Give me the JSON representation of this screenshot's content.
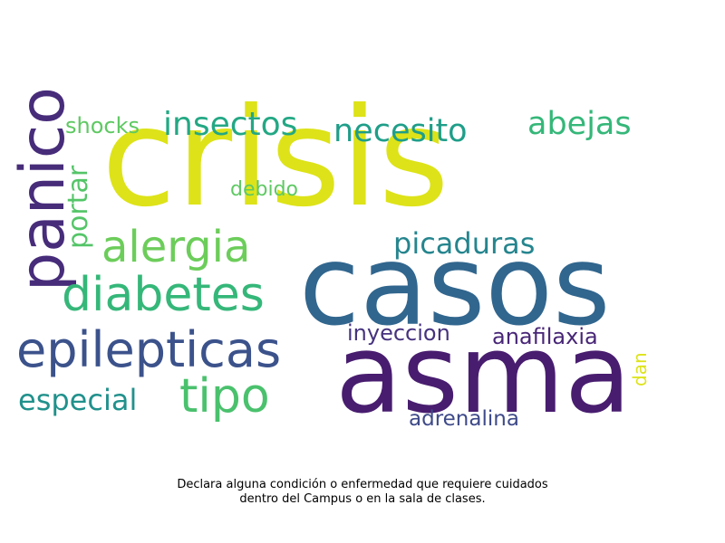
{
  "caption": {
    "line1": "Declara alguna condición o enfermedad que requiere cuidados",
    "line2": "dentro del Campus o en la sala de clases."
  },
  "words": [
    {
      "text": "crisis",
      "color": "#dde318"
    },
    {
      "text": "casos",
      "color": "#31668e"
    },
    {
      "text": "asma",
      "color": "#481d6f"
    },
    {
      "text": "panico",
      "color": "#472c7a"
    },
    {
      "text": "diabetes",
      "color": "#35b779"
    },
    {
      "text": "epilepticas",
      "color": "#3b528b"
    },
    {
      "text": "alergia",
      "color": "#6ccd5a"
    },
    {
      "text": "tipo",
      "color": "#4ac16d"
    },
    {
      "text": "insectos",
      "color": "#23a884"
    },
    {
      "text": "necesito",
      "color": "#1f9e89"
    },
    {
      "text": "abejas",
      "color": "#35b779"
    },
    {
      "text": "picaduras",
      "color": "#25858e"
    },
    {
      "text": "portar",
      "color": "#54c568"
    },
    {
      "text": "shocks",
      "color": "#5ec962"
    },
    {
      "text": "debido",
      "color": "#5ec962"
    },
    {
      "text": "especial",
      "color": "#21918c"
    },
    {
      "text": "inyeccion",
      "color": "#46327e"
    },
    {
      "text": "anafilaxia",
      "color": "#482677"
    },
    {
      "text": "adrenalina",
      "color": "#3e4a89"
    },
    {
      "text": "dan",
      "color": "#dde318"
    }
  ]
}
